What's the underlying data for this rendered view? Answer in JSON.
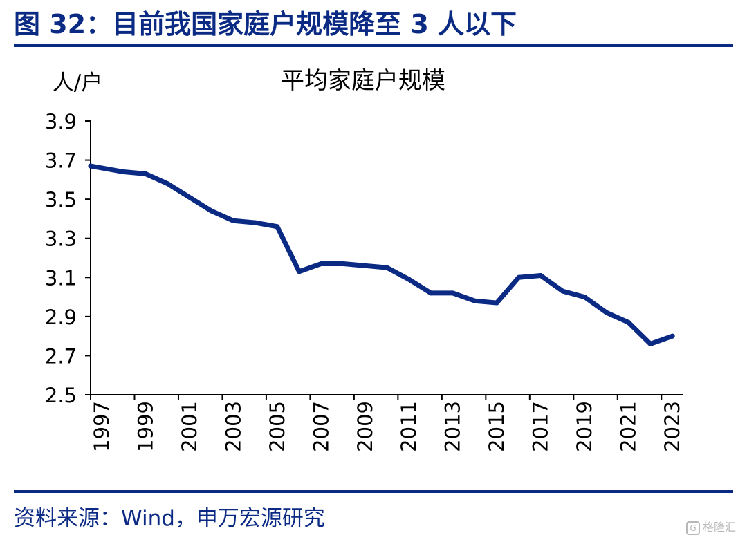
{
  "figure_title": "图 32：目前我国家庭户规模降至 3 人以下",
  "source": "资料来源：Wind，申万宏源研究",
  "watermark": "格隆汇",
  "colors": {
    "brand": "#0b2a84",
    "axis": "#000000",
    "text": "#000000"
  },
  "chart_data": {
    "type": "line",
    "title": "平均家庭户规模",
    "ylabel": "人/户",
    "xlabel": "",
    "x": [
      1997,
      1998,
      1999,
      2000,
      2001,
      2002,
      2003,
      2004,
      2005,
      2006,
      2007,
      2008,
      2009,
      2010,
      2011,
      2012,
      2013,
      2014,
      2015,
      2016,
      2017,
      2018,
      2019,
      2020,
      2021,
      2022,
      2023
    ],
    "xticks": [
      "1997",
      "1999",
      "2001",
      "2003",
      "2005",
      "2007",
      "2009",
      "2011",
      "2013",
      "2015",
      "2017",
      "2019",
      "2021",
      "2023"
    ],
    "series": [
      {
        "name": "平均家庭户规模",
        "values": [
          3.67,
          3.64,
          3.63,
          3.58,
          3.51,
          3.44,
          3.39,
          3.38,
          3.36,
          3.13,
          3.17,
          3.17,
          3.16,
          3.15,
          3.09,
          3.02,
          3.02,
          2.98,
          2.97,
          3.1,
          3.11,
          3.03,
          3.0,
          2.92,
          2.87,
          2.76,
          2.8
        ]
      }
    ],
    "ylim": [
      2.5,
      3.9
    ],
    "yticks": [
      "3.9",
      "3.7",
      "3.5",
      "3.3",
      "3.1",
      "2.9",
      "2.7",
      "2.5"
    ],
    "grid": false,
    "legend": "none"
  }
}
